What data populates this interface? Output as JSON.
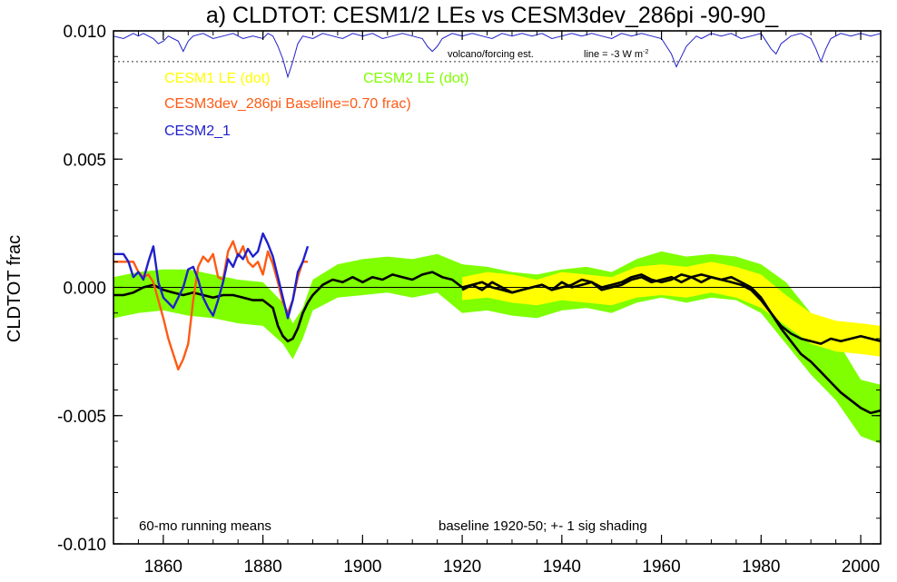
{
  "chart_data": {
    "type": "line",
    "title": "a) CLDTOT: CESM1/2 LEs vs CESM3dev_286pi -90-90_",
    "ylabel": "CLDTOT frac",
    "xlabel": "",
    "xlim": [
      1850,
      2004
    ],
    "ylim": [
      -0.01,
      0.01
    ],
    "y_ticks": [
      {
        "value": 0.01,
        "label": "0.010"
      },
      {
        "value": 0.005,
        "label": "0.005"
      },
      {
        "value": 0.0,
        "label": "0.000"
      },
      {
        "value": -0.005,
        "label": "-0.005"
      },
      {
        "value": -0.01,
        "label": "-0.010"
      }
    ],
    "x_ticks": [
      {
        "value": 1860,
        "label": "1860"
      },
      {
        "value": 1880,
        "label": "1880"
      },
      {
        "value": 1900,
        "label": "1900"
      },
      {
        "value": 1920,
        "label": "1920"
      },
      {
        "value": 1940,
        "label": "1940"
      },
      {
        "value": 1960,
        "label": "1960"
      },
      {
        "value": 1980,
        "label": "1980"
      },
      {
        "value": 2000,
        "label": "2000"
      }
    ],
    "zero_line": 0.0,
    "legend": {
      "placement": "top-left",
      "entries": [
        {
          "label": "CESM1 LE (dot)",
          "color": "#ffff00"
        },
        {
          "label": "CESM2 LE (dot)",
          "color": "#7fff00"
        },
        {
          "label": "CESM3dev_286pi Baseline=0.70 frac)",
          "color": "#ff5a14"
        },
        {
          "label": "CESM2_1",
          "color": "#2020cc"
        }
      ]
    },
    "annotations": {
      "volcano": "volcano/forcing est.",
      "line_prefix": "line = -3 W m",
      "line_sup": "-2",
      "bottom_left": "60-mo running means",
      "bottom_right": "baseline 1920-50; +- 1 sig shading"
    },
    "volcano_ref_y": 0.0088,
    "volcano_curve": {
      "color": "#2020cc",
      "x": [
        1850,
        1852,
        1854,
        1855,
        1856,
        1857,
        1858,
        1859,
        1860,
        1861,
        1862,
        1863,
        1864,
        1865,
        1866,
        1868,
        1870,
        1872,
        1874,
        1876,
        1878,
        1880,
        1881,
        1882,
        1883,
        1884,
        1885,
        1886,
        1887,
        1888,
        1890,
        1892,
        1894,
        1896,
        1898,
        1900,
        1902,
        1904,
        1906,
        1908,
        1910,
        1912,
        1913,
        1914,
        1915,
        1916,
        1918,
        1920,
        1922,
        1924,
        1926,
        1928,
        1930,
        1932,
        1934,
        1936,
        1938,
        1940,
        1942,
        1944,
        1946,
        1948,
        1950,
        1952,
        1954,
        1956,
        1958,
        1960,
        1961,
        1962,
        1963,
        1964,
        1965,
        1966,
        1967,
        1968,
        1970,
        1972,
        1974,
        1976,
        1978,
        1980,
        1981,
        1982,
        1983,
        1984,
        1986,
        1988,
        1990,
        1991,
        1992,
        1993,
        1994,
        1996,
        1998,
        2000,
        2002,
        2004
      ],
      "y": [
        0.0098,
        0.0097,
        0.0099,
        0.0098,
        0.0099,
        0.0098,
        0.0097,
        0.0095,
        0.0096,
        0.0098,
        0.0097,
        0.0096,
        0.0092,
        0.0096,
        0.0098,
        0.0099,
        0.0097,
        0.0098,
        0.0099,
        0.0097,
        0.0098,
        0.0097,
        0.0099,
        0.0098,
        0.0094,
        0.0089,
        0.0082,
        0.0088,
        0.0095,
        0.0098,
        0.0097,
        0.0099,
        0.0098,
        0.0097,
        0.0099,
        0.0098,
        0.0099,
        0.0097,
        0.0098,
        0.0099,
        0.0098,
        0.0097,
        0.0094,
        0.0092,
        0.0094,
        0.0097,
        0.0099,
        0.0098,
        0.0099,
        0.0098,
        0.0097,
        0.0099,
        0.0098,
        0.0099,
        0.0098,
        0.0099,
        0.0097,
        0.0098,
        0.0099,
        0.0098,
        0.0099,
        0.0098,
        0.0097,
        0.0099,
        0.0098,
        0.0099,
        0.0098,
        0.0097,
        0.0094,
        0.0091,
        0.0086,
        0.009,
        0.0094,
        0.0096,
        0.0098,
        0.0097,
        0.0099,
        0.0098,
        0.0099,
        0.0097,
        0.0098,
        0.0099,
        0.0096,
        0.0093,
        0.0091,
        0.0095,
        0.0098,
        0.0099,
        0.0097,
        0.0093,
        0.0088,
        0.0093,
        0.0097,
        0.0099,
        0.0098,
        0.0099,
        0.0098,
        0.0099
      ]
    },
    "bands": [
      {
        "name": "CESM2 LE (dot)",
        "color": "#7fff00",
        "x": [
          1850,
          1855,
          1860,
          1865,
          1870,
          1875,
          1880,
          1884,
          1886,
          1888,
          1890,
          1895,
          1900,
          1905,
          1910,
          1915,
          1920,
          1925,
          1930,
          1935,
          1940,
          1945,
          1950,
          1955,
          1960,
          1965,
          1970,
          1975,
          1980,
          1985,
          1990,
          1995,
          2000,
          2004
        ],
        "upper": [
          0.0004,
          0.0006,
          0.0007,
          0.0007,
          0.0005,
          0.0003,
          0.0002,
          -0.0006,
          -0.0014,
          -0.0008,
          0.0003,
          0.0009,
          0.0011,
          0.0012,
          0.0011,
          0.0013,
          0.0009,
          0.0008,
          0.0006,
          0.0005,
          0.0007,
          0.0008,
          0.0006,
          0.0011,
          0.0014,
          0.0012,
          0.0013,
          0.0012,
          0.0009,
          0.0002,
          -0.001,
          -0.002,
          -0.0036,
          -0.0038
        ],
        "lower": [
          -0.0012,
          -0.001,
          -0.0009,
          -0.0011,
          -0.0012,
          -0.0014,
          -0.0015,
          -0.0022,
          -0.0028,
          -0.002,
          -0.0009,
          -0.0004,
          -0.0003,
          -0.0002,
          -0.0004,
          -0.0002,
          -0.001,
          -0.0009,
          -0.0011,
          -0.0012,
          -0.0009,
          -0.0008,
          -0.001,
          -0.0006,
          -0.0004,
          -0.0006,
          -0.0004,
          -0.0005,
          -0.001,
          -0.0022,
          -0.0034,
          -0.0044,
          -0.0058,
          -0.0061
        ]
      },
      {
        "name": "CESM1 LE (dot)",
        "color": "#ffff00",
        "x": [
          1920,
          1925,
          1930,
          1935,
          1940,
          1945,
          1950,
          1955,
          1960,
          1965,
          1970,
          1975,
          1980,
          1985,
          1990,
          1995,
          2000,
          2004
        ],
        "upper": [
          0.0004,
          0.0006,
          0.0005,
          0.0003,
          0.0006,
          0.0005,
          0.0004,
          0.0008,
          0.0009,
          0.0008,
          0.001,
          0.0008,
          0.0005,
          -0.0003,
          -0.001,
          -0.0013,
          -0.0014,
          -0.0015
        ],
        "lower": [
          -0.0005,
          -0.0004,
          -0.0006,
          -0.0007,
          -0.0005,
          -0.0006,
          -0.0007,
          -0.0004,
          -0.0003,
          -0.0004,
          -0.0002,
          -0.0004,
          -0.0008,
          -0.0015,
          -0.0022,
          -0.0025,
          -0.0026,
          -0.0027
        ]
      }
    ],
    "series": [
      {
        "name": "CESM2 LE mean",
        "color": "#000000",
        "width": 2.6,
        "x": [
          1850,
          1852,
          1854,
          1856,
          1858,
          1860,
          1862,
          1864,
          1866,
          1868,
          1870,
          1872,
          1874,
          1876,
          1878,
          1880,
          1882,
          1883,
          1884,
          1885,
          1886,
          1887,
          1888,
          1889,
          1890,
          1892,
          1894,
          1896,
          1898,
          1900,
          1902,
          1904,
          1906,
          1908,
          1910,
          1912,
          1914,
          1916,
          1918,
          1920,
          1922,
          1924,
          1926,
          1928,
          1930,
          1932,
          1934,
          1936,
          1938,
          1940,
          1942,
          1944,
          1946,
          1948,
          1950,
          1952,
          1954,
          1956,
          1958,
          1960,
          1962,
          1964,
          1966,
          1968,
          1970,
          1972,
          1974,
          1976,
          1978,
          1980,
          1982,
          1984,
          1986,
          1988,
          1990,
          1992,
          1994,
          1996,
          1998,
          2000,
          2002,
          2004
        ],
        "y": [
          -0.0003,
          -0.0003,
          -0.0002,
          0.0,
          0.0001,
          -0.0001,
          -0.0002,
          -0.0003,
          -0.0002,
          -0.0003,
          -0.0004,
          -0.0003,
          -0.0003,
          -0.0004,
          -0.0005,
          -0.0005,
          -0.0008,
          -0.0015,
          -0.0019,
          -0.0021,
          -0.002,
          -0.0016,
          -0.001,
          -0.0006,
          -0.0003,
          0.0001,
          0.0003,
          0.0002,
          0.0004,
          0.0002,
          0.0004,
          0.0003,
          0.0005,
          0.0004,
          0.0003,
          0.0005,
          0.0006,
          0.0004,
          0.0003,
          0.0,
          0.0001,
          -0.0001,
          0.0002,
          0.0,
          -0.0002,
          -0.0001,
          0.0,
          0.0001,
          -0.0001,
          0.0002,
          0.0,
          0.0001,
          0.0002,
          -0.0001,
          0.0,
          0.0001,
          0.0003,
          0.0004,
          0.0002,
          0.0003,
          0.0004,
          0.0002,
          0.0004,
          0.0005,
          0.0004,
          0.0003,
          0.0004,
          0.0002,
          0.0,
          -0.0004,
          -0.001,
          -0.0016,
          -0.0021,
          -0.0026,
          -0.0029,
          -0.0033,
          -0.0037,
          -0.0041,
          -0.0044,
          -0.0047,
          -0.0049,
          -0.0048
        ]
      },
      {
        "name": "CESM1 LE mean",
        "color": "#000000",
        "width": 2.6,
        "x": [
          1920,
          1922,
          1924,
          1926,
          1928,
          1930,
          1932,
          1934,
          1936,
          1938,
          1940,
          1942,
          1944,
          1946,
          1948,
          1950,
          1952,
          1954,
          1956,
          1958,
          1960,
          1962,
          1964,
          1966,
          1968,
          1970,
          1972,
          1974,
          1976,
          1978,
          1980,
          1982,
          1984,
          1986,
          1988,
          1990,
          1992,
          1994,
          1996,
          1998,
          2000,
          2002,
          2004
        ],
        "y": [
          -0.0001,
          0.0001,
          0.0002,
          0.0,
          -0.0001,
          -0.0002,
          -0.0001,
          0.0,
          0.0001,
          -0.0001,
          0.0,
          0.0001,
          0.0003,
          0.0002,
          0.0,
          0.0001,
          0.0002,
          0.0004,
          0.0005,
          0.0003,
          0.0002,
          0.0003,
          0.0005,
          0.0004,
          0.0002,
          0.0004,
          0.0003,
          0.0002,
          0.0001,
          -0.0001,
          -0.0005,
          -0.001,
          -0.0015,
          -0.0018,
          -0.002,
          -0.0021,
          -0.0022,
          -0.002,
          -0.0021,
          -0.002,
          -0.0019,
          -0.002,
          -0.0021
        ]
      },
      {
        "name": "CESM3dev_286pi",
        "color": "#ff5a14",
        "width": 2.4,
        "x": [
          1850,
          1852,
          1854,
          1855,
          1856,
          1857,
          1858,
          1859,
          1860,
          1861,
          1862,
          1863,
          1864,
          1865,
          1866,
          1867,
          1868,
          1869,
          1870,
          1871,
          1872,
          1873,
          1874,
          1875,
          1876,
          1877,
          1878,
          1879,
          1880,
          1881,
          1882,
          1883,
          1884,
          1885,
          1886,
          1887,
          1888,
          1889
        ],
        "y": [
          0.001,
          0.001,
          0.001,
          0.0006,
          0.0004,
          0.0005,
          0.0002,
          -0.0005,
          -0.0012,
          -0.002,
          -0.0026,
          -0.0032,
          -0.0028,
          -0.0022,
          -0.0005,
          0.0008,
          0.0012,
          0.001,
          0.0013,
          0.0004,
          0.0003,
          0.0014,
          0.0018,
          0.0012,
          0.0016,
          0.001,
          0.0008,
          0.001,
          0.0005,
          0.0014,
          0.0009,
          0.0002,
          -0.0006,
          -0.001,
          -0.0005,
          0.0004,
          0.001,
          0.001
        ]
      },
      {
        "name": "CESM2_1",
        "color": "#2020cc",
        "width": 2.4,
        "x": [
          1850,
          1852,
          1853,
          1854,
          1855,
          1856,
          1857,
          1858,
          1859,
          1860,
          1861,
          1862,
          1863,
          1864,
          1865,
          1866,
          1867,
          1868,
          1869,
          1870,
          1871,
          1872,
          1873,
          1874,
          1875,
          1876,
          1877,
          1878,
          1879,
          1880,
          1881,
          1882,
          1883,
          1884,
          1885,
          1886,
          1887,
          1888,
          1889
        ],
        "y": [
          0.0013,
          0.0013,
          0.001,
          0.0004,
          0.0006,
          0.0003,
          0.001,
          0.0016,
          0.0002,
          -0.0004,
          -0.0006,
          -0.0008,
          -0.0004,
          0.0,
          0.0007,
          0.0008,
          0.0003,
          -0.0004,
          -0.0008,
          -0.0011,
          -0.0005,
          0.0002,
          0.0011,
          0.0008,
          0.0013,
          0.0011,
          0.0015,
          0.0012,
          0.0014,
          0.0021,
          0.0017,
          0.0012,
          0.0004,
          -0.0004,
          -0.0012,
          -0.0005,
          0.0006,
          0.001,
          0.0016
        ]
      }
    ]
  }
}
